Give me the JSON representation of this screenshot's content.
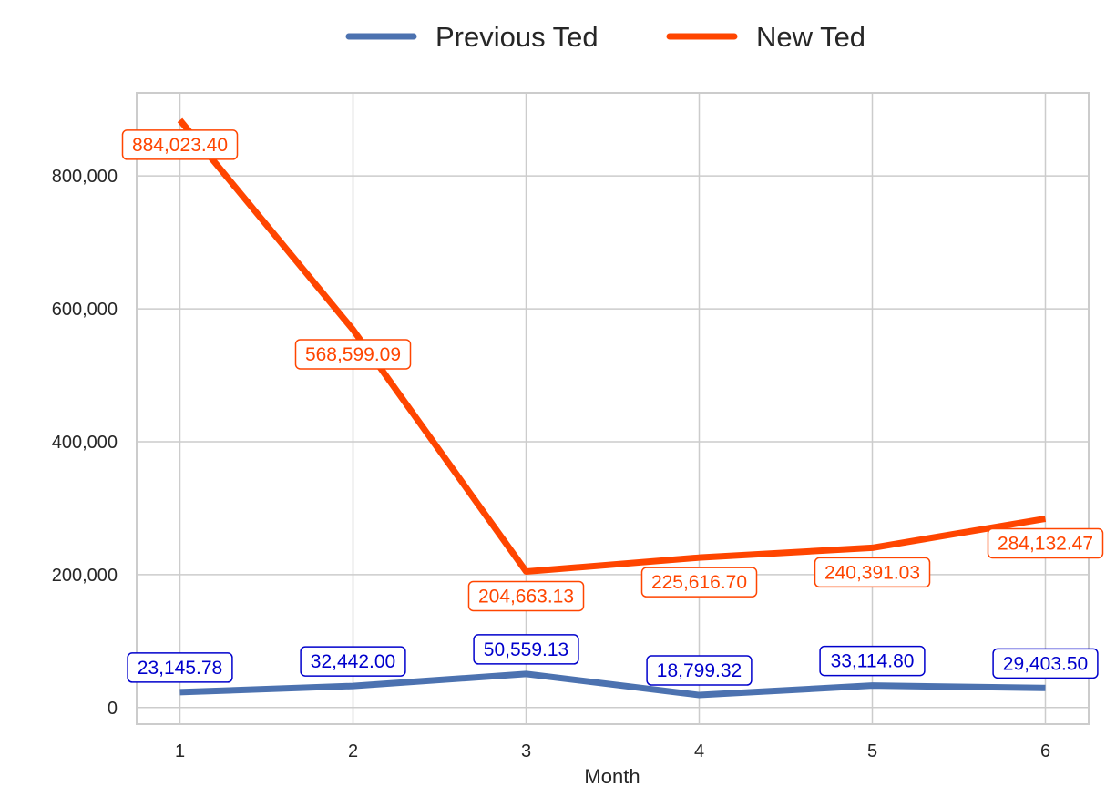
{
  "chart_data": {
    "type": "line",
    "xlabel": "Month",
    "ylabel": "",
    "x": [
      1,
      2,
      3,
      4,
      5,
      6
    ],
    "x_tick_labels": [
      "1",
      "2",
      "3",
      "4",
      "5",
      "6"
    ],
    "xlim": [
      0.75,
      6.25
    ],
    "ylim": [
      -25000,
      925000
    ],
    "y_ticks": [
      0,
      200000,
      400000,
      600000,
      800000
    ],
    "y_tick_labels": [
      "0",
      "200,000",
      "400,000",
      "600,000",
      "800,000"
    ],
    "grid": true,
    "legend_position": "top-center",
    "series": [
      {
        "name": "Previous Ted",
        "color": "#4c72b0",
        "label_color": "#0000cc",
        "label_position": "above",
        "values": [
          23145.78,
          32442.0,
          50559.13,
          18799.32,
          33114.8,
          29403.5
        ],
        "labels": [
          "23,145.78",
          "32,442.00",
          "50,559.13",
          "18,799.32",
          "33,114.80",
          "29,403.50"
        ]
      },
      {
        "name": "New Ted",
        "color": "#ff4500",
        "label_color": "#ff4500",
        "label_position": "below",
        "values": [
          884023.4,
          568599.09,
          204663.13,
          225616.7,
          240391.03,
          284132.47
        ],
        "labels": [
          "884,023.40",
          "568,599.09",
          "204,663.13",
          "225,616.70",
          "240,391.03",
          "284,132.47"
        ]
      }
    ]
  }
}
